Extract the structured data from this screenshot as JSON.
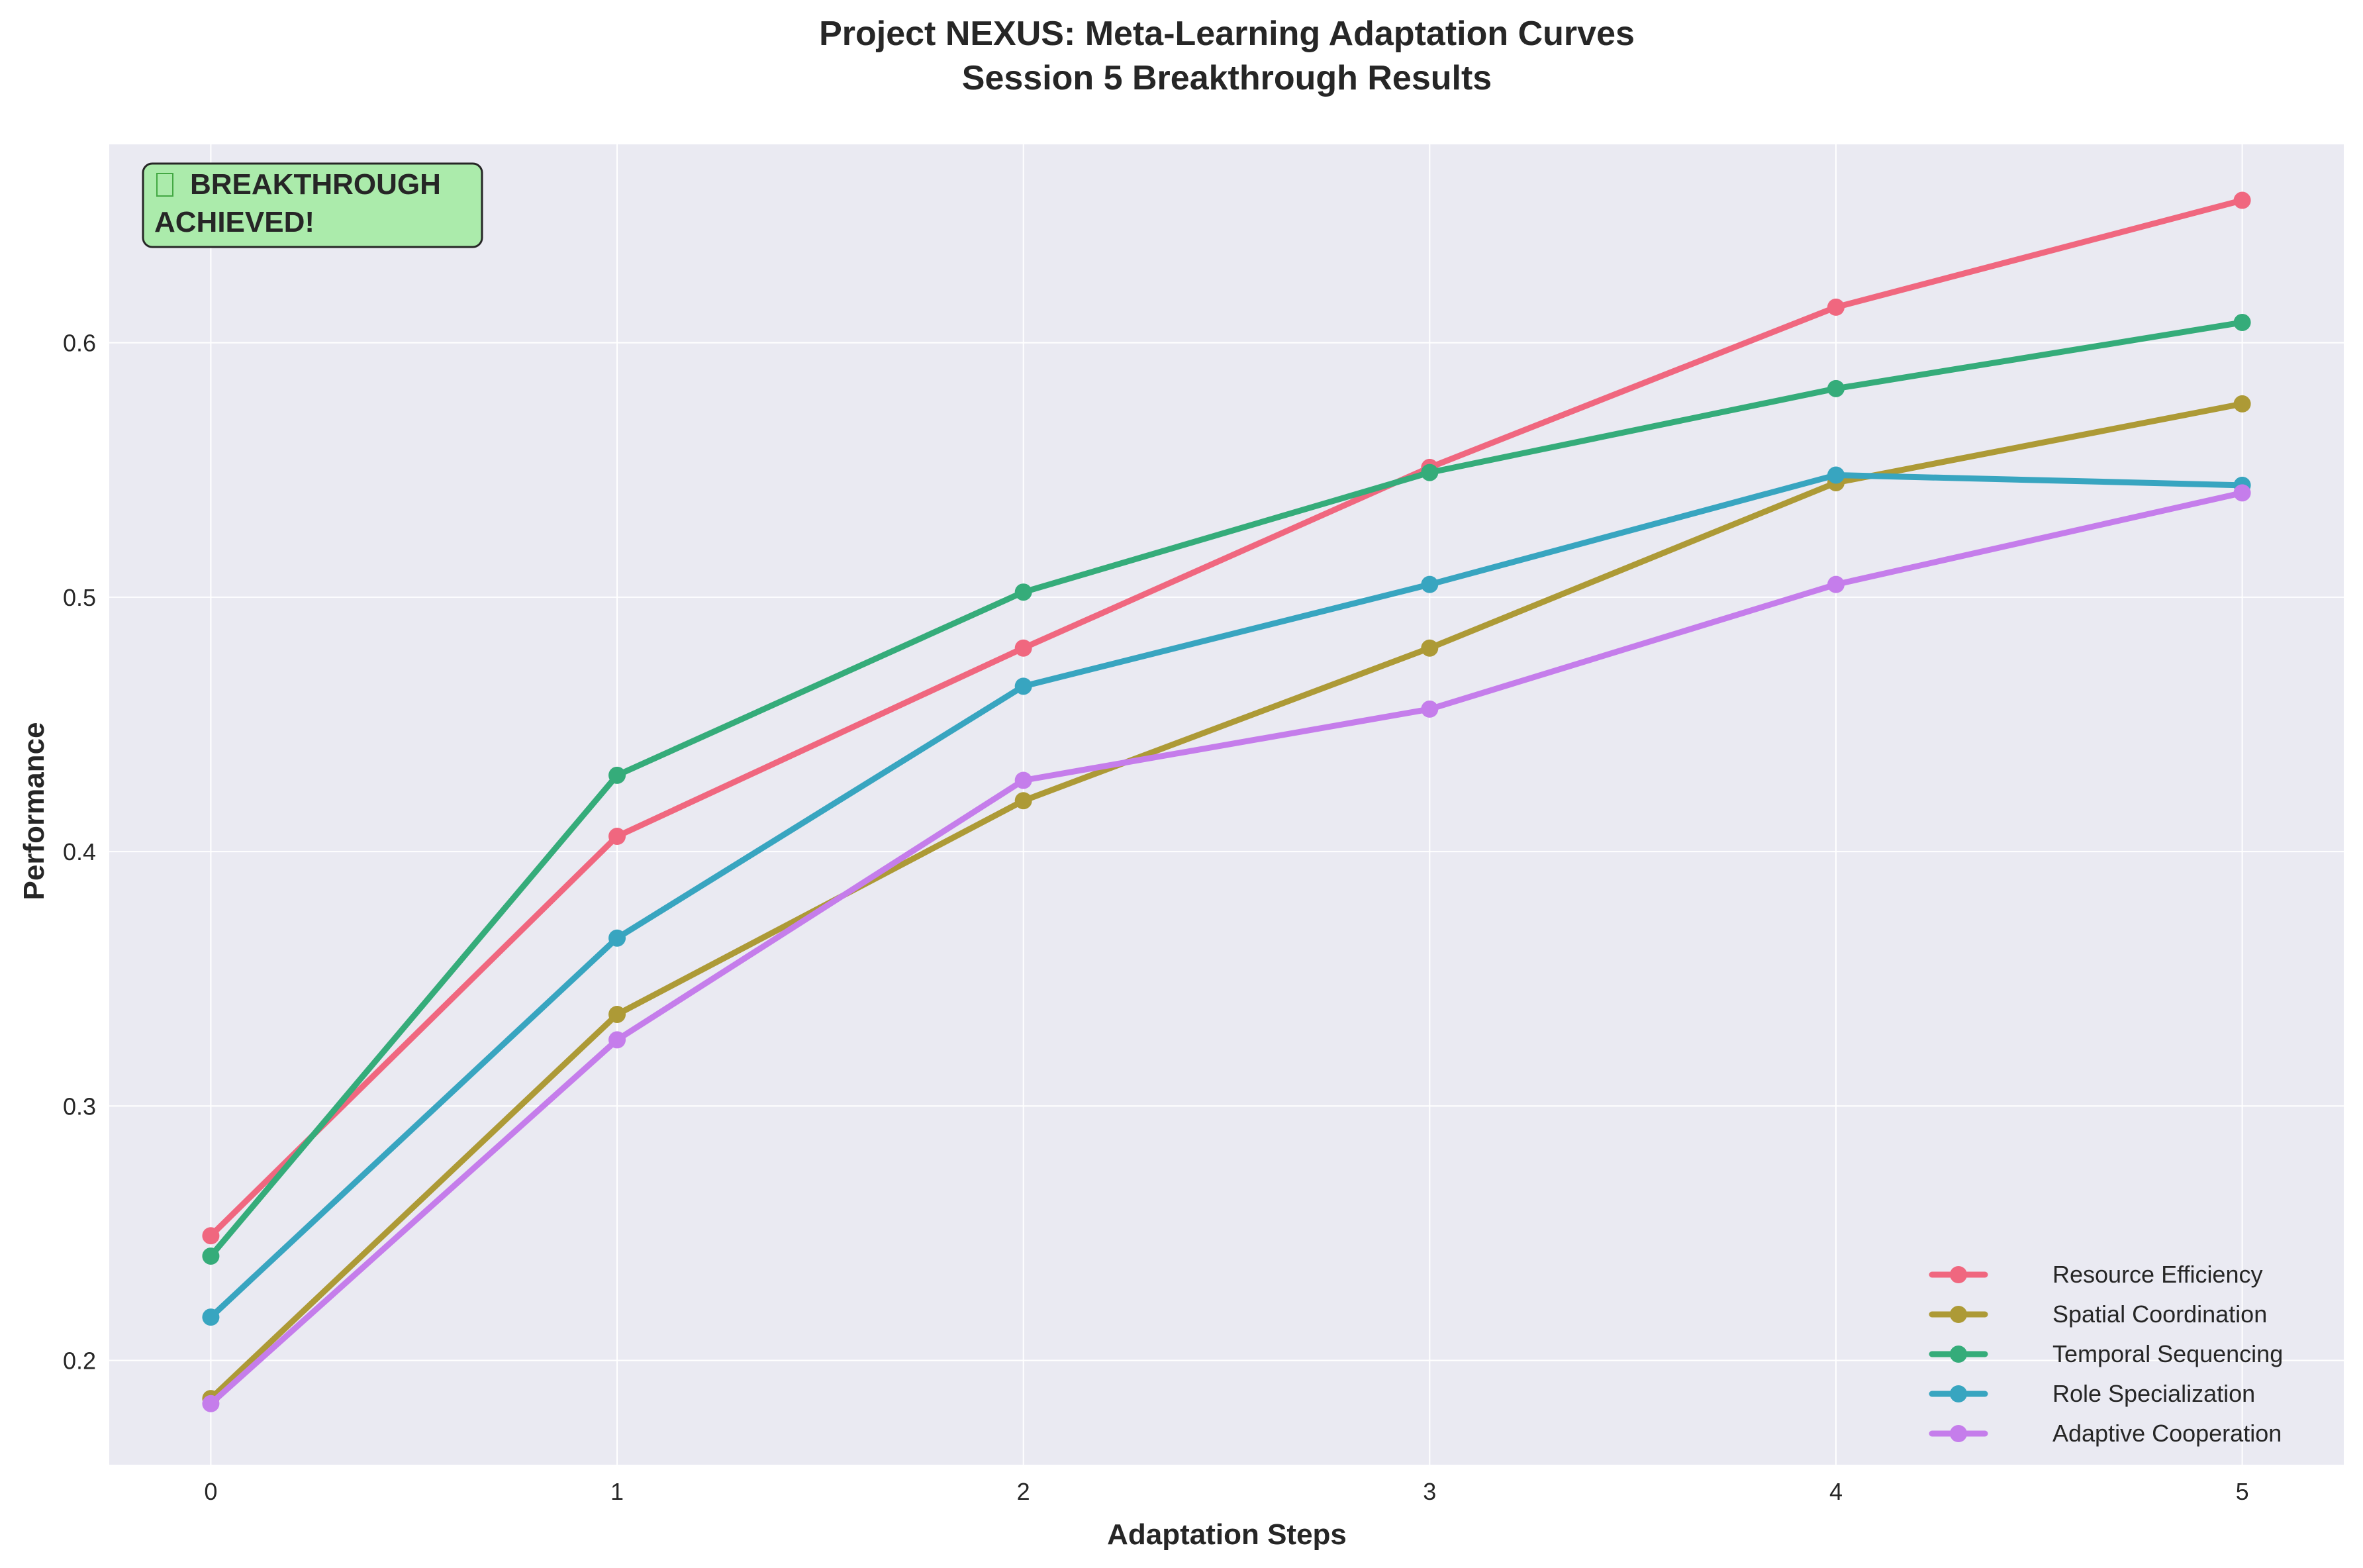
{
  "chart_data": {
    "type": "line",
    "title": "Project NEXUS: Meta-Learning Adaptation Curves",
    "subtitle": "Session 5 Breakthrough Results",
    "xlabel": "Adaptation Steps",
    "ylabel": "Performance",
    "x": [
      0,
      1,
      2,
      3,
      4,
      5
    ],
    "xlim": [
      -0.25,
      5.25
    ],
    "ylim": [
      0.159,
      0.678
    ],
    "xticks": [
      "0",
      "1",
      "2",
      "3",
      "4",
      "5"
    ],
    "yticks": [
      "0.2",
      "0.3",
      "0.4",
      "0.5",
      "0.6"
    ],
    "grid": true,
    "legend_position": "lower-right",
    "series": [
      {
        "name": "Resource Efficiency",
        "color": "#f0677f",
        "values": [
          0.249,
          0.406,
          0.48,
          0.551,
          0.614,
          0.656
        ]
      },
      {
        "name": "Spatial Coordination",
        "color": "#ad9a36",
        "values": [
          0.185,
          0.336,
          0.42,
          0.48,
          0.545,
          0.576
        ]
      },
      {
        "name": "Temporal Sequencing",
        "color": "#35ac7a",
        "values": [
          0.241,
          0.43,
          0.502,
          0.549,
          0.582,
          0.608
        ]
      },
      {
        "name": "Role Specialization",
        "color": "#38a5c0",
        "values": [
          0.217,
          0.366,
          0.465,
          0.505,
          0.548,
          0.544
        ]
      },
      {
        "name": "Adaptive Cooperation",
        "color": "#c57deb",
        "values": [
          0.183,
          0.326,
          0.428,
          0.456,
          0.505,
          0.541
        ]
      }
    ],
    "annotation": {
      "icon": "trophy-icon",
      "line1": "BREAKTHROUGH",
      "line2": "ACHIEVED!",
      "background": "#abebab"
    }
  }
}
